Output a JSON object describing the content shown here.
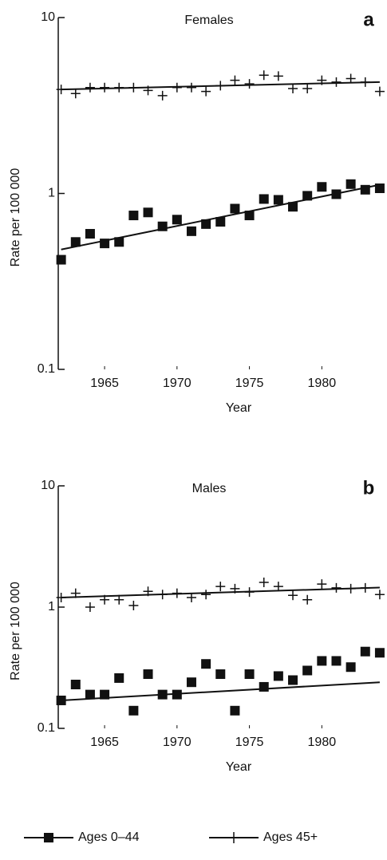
{
  "chart_data": [
    {
      "type": "line",
      "title": "Females",
      "panel_label": "a",
      "x_label": "Year",
      "y_label": "Rate per 100 000",
      "log_y": true,
      "xlim": [
        1961.8,
        1984.5
      ],
      "xticks": [
        1965,
        1970,
        1975,
        1980
      ],
      "ylim": [
        0.1,
        10
      ],
      "yticks": [
        0.1,
        1,
        10
      ],
      "x": [
        1962,
        1963,
        1964,
        1965,
        1966,
        1967,
        1968,
        1969,
        1970,
        1971,
        1972,
        1973,
        1974,
        1975,
        1976,
        1977,
        1978,
        1979,
        1980,
        1981,
        1982,
        1983,
        1984
      ],
      "series": [
        {
          "name": "Ages 0–44",
          "color": "#111111",
          "marker": "square",
          "values": [
            0.42,
            0.53,
            0.59,
            0.52,
            0.53,
            0.75,
            0.78,
            0.65,
            0.71,
            0.61,
            0.67,
            0.69,
            0.82,
            0.75,
            0.93,
            0.92,
            0.84,
            0.97,
            1.09,
            0.99,
            1.13,
            1.05,
            1.07
          ],
          "trend": {
            "x": [
              1962,
              1984
            ],
            "values": [
              0.48,
              1.12
            ]
          }
        },
        {
          "name": "Ages 45+",
          "color": "#111111",
          "marker": "plus",
          "values": [
            3.9,
            3.7,
            4.0,
            4.0,
            4.0,
            4.0,
            3.85,
            3.6,
            4.0,
            4.0,
            3.8,
            4.1,
            4.4,
            4.2,
            4.7,
            4.65,
            3.95,
            3.95,
            4.4,
            4.3,
            4.5,
            4.3,
            3.8
          ],
          "trend": {
            "x": [
              1962,
              1984
            ],
            "values": [
              3.9,
              4.3
            ]
          }
        }
      ]
    },
    {
      "type": "line",
      "title": "Males",
      "panel_label": "b",
      "x_label": "Year",
      "y_label": "Rate per 100 000",
      "log_y": true,
      "xlim": [
        1961.8,
        1984.5
      ],
      "xticks": [
        1965,
        1970,
        1975,
        1980
      ],
      "ylim": [
        0.1,
        10
      ],
      "yticks": [
        0.1,
        1,
        10
      ],
      "x": [
        1962,
        1963,
        1964,
        1965,
        1966,
        1967,
        1968,
        1969,
        1970,
        1971,
        1972,
        1973,
        1974,
        1975,
        1976,
        1977,
        1978,
        1979,
        1980,
        1981,
        1982,
        1983,
        1984
      ],
      "series": [
        {
          "name": "Ages 0–44",
          "color": "#111111",
          "marker": "square",
          "values": [
            0.17,
            0.23,
            0.19,
            0.19,
            0.26,
            0.14,
            0.28,
            0.19,
            0.19,
            0.24,
            0.34,
            0.28,
            0.14,
            0.28,
            0.22,
            0.27,
            0.25,
            0.3,
            0.36,
            0.36,
            0.32,
            0.43,
            0.42
          ],
          "trend": {
            "x": [
              1962,
              1984
            ],
            "values": [
              0.17,
              0.24
            ]
          }
        },
        {
          "name": "Ages 45+",
          "color": "#111111",
          "marker": "plus",
          "values": [
            1.2,
            1.3,
            1.0,
            1.15,
            1.15,
            1.03,
            1.35,
            1.27,
            1.3,
            1.2,
            1.27,
            1.48,
            1.42,
            1.33,
            1.6,
            1.48,
            1.25,
            1.15,
            1.55,
            1.44,
            1.42,
            1.44,
            1.27
          ],
          "trend": {
            "x": [
              1962,
              1984
            ],
            "values": [
              1.2,
              1.45
            ]
          }
        }
      ]
    }
  ]
}
